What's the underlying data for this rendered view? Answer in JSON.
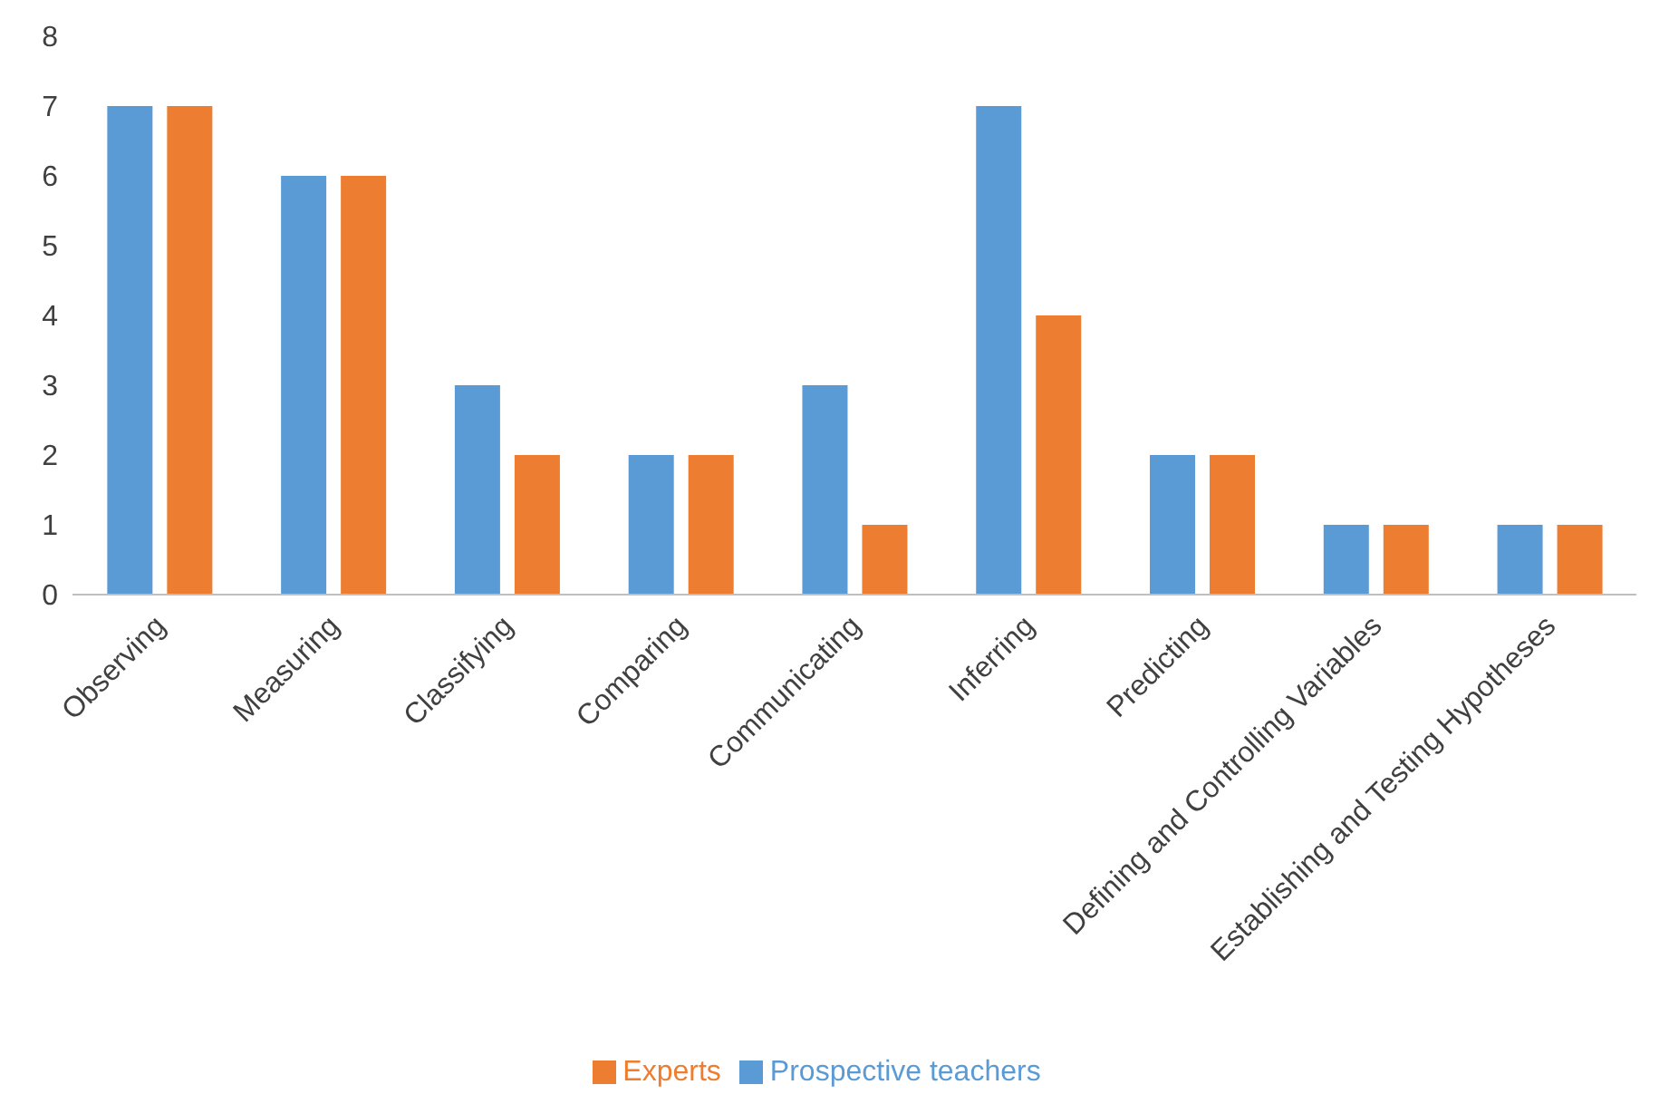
{
  "chart_data": {
    "type": "bar",
    "categories": [
      "Observing",
      "Measuring",
      "Classifying",
      "Comparing",
      "Communicating",
      "Inferring",
      "Predicting",
      "Defining and Controlling Variables",
      "Establishing and Testing Hypotheses"
    ],
    "series": [
      {
        "name": "Prospective teachers",
        "color": "#5b9bd5",
        "values": [
          7,
          6,
          3,
          2,
          3,
          7,
          2,
          1,
          1
        ]
      },
      {
        "name": "Experts",
        "color": "#ed7d31",
        "values": [
          7,
          6,
          2,
          2,
          1,
          4,
          2,
          1,
          1
        ]
      }
    ],
    "ylim": [
      0,
      8
    ],
    "yticks": [
      0,
      1,
      2,
      3,
      4,
      5,
      6,
      7,
      8
    ],
    "grid": false,
    "legend": "bottom"
  }
}
